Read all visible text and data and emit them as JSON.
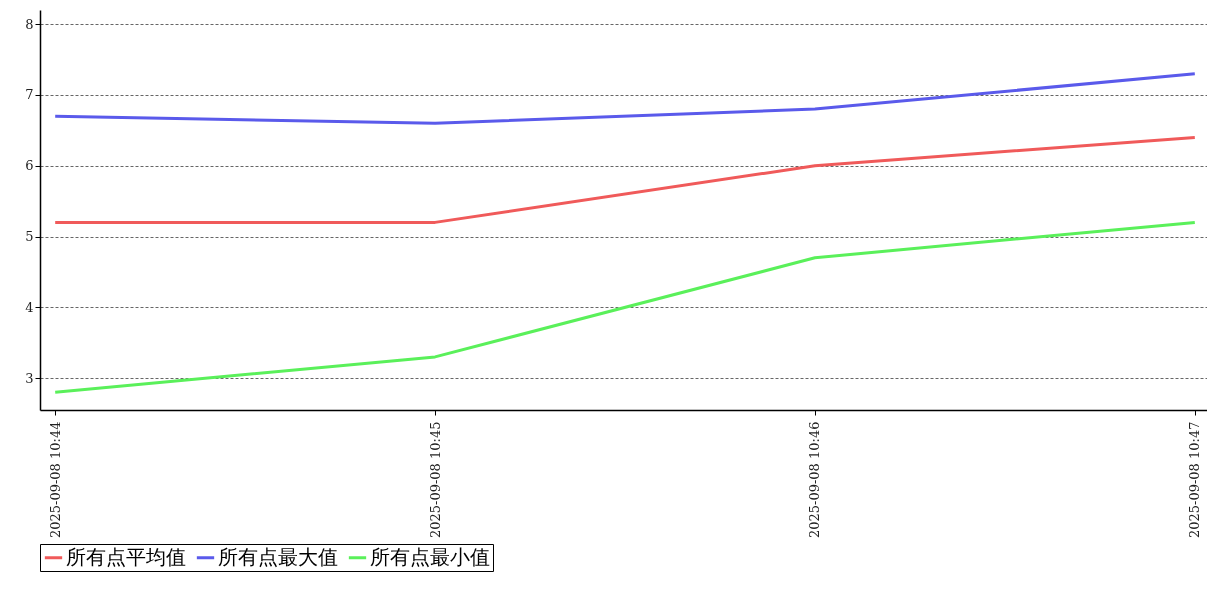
{
  "chart_data": {
    "type": "line",
    "categories": [
      "2025-09-08 10:44",
      "2025-09-08 10:45",
      "2025-09-08 10:46",
      "2025-09-08 10:47"
    ],
    "series": [
      {
        "name": "所有点平均值",
        "color": "#f05a5a",
        "values": [
          5.2,
          5.2,
          6.0,
          6.4
        ]
      },
      {
        "name": "所有点最大值",
        "color": "#5a5aeb",
        "values": [
          6.7,
          6.6,
          6.8,
          7.3
        ]
      },
      {
        "name": "所有点最小值",
        "color": "#5af05a",
        "values": [
          2.8,
          3.3,
          4.7,
          5.2
        ]
      }
    ],
    "ylim": [
      2.55,
      8.2
    ],
    "yticks": [
      3,
      4,
      5,
      6,
      7,
      8
    ],
    "grid": "y",
    "legend": "bottom",
    "marker": "none",
    "line_style": "solid"
  }
}
